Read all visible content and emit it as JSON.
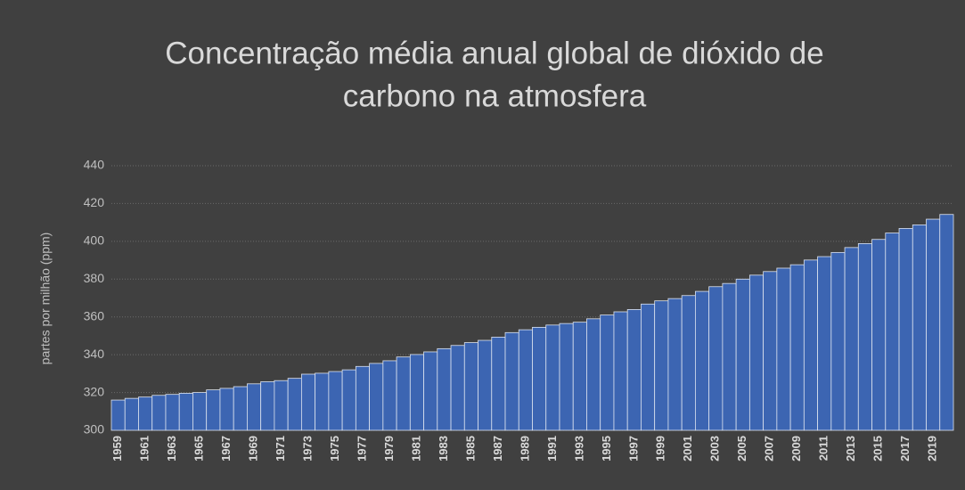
{
  "chart_data": {
    "type": "bar",
    "title": [
      "Concentração média anual global de dióxido de",
      "carbono na atmosfera"
    ],
    "y_label": "partes por milhão (ppm)",
    "categories": [
      "1959",
      null,
      "1961",
      null,
      "1963",
      null,
      "1965",
      null,
      "1967",
      null,
      "1969",
      null,
      "1971",
      null,
      "1973",
      null,
      "1975",
      null,
      "1977",
      null,
      "1979",
      null,
      "1981",
      null,
      "1983",
      null,
      "1985",
      null,
      "1987",
      null,
      "1989",
      null,
      "1991",
      null,
      "1993",
      null,
      "1995",
      null,
      "1997",
      null,
      "1999",
      null,
      "2001",
      null,
      "2003",
      null,
      "2005",
      null,
      "2007",
      null,
      "2009",
      null,
      "2011",
      null,
      "2013",
      null,
      "2015",
      null,
      "2017",
      null,
      "2019",
      null
    ],
    "values": [
      316.0,
      316.9,
      317.6,
      318.5,
      319.0,
      319.6,
      320.0,
      321.4,
      322.2,
      323.1,
      324.6,
      325.7,
      326.3,
      327.5,
      329.7,
      330.2,
      331.1,
      332.0,
      333.8,
      335.4,
      336.8,
      338.8,
      340.1,
      341.5,
      343.2,
      344.9,
      346.4,
      347.6,
      349.3,
      351.7,
      353.2,
      354.5,
      355.7,
      356.5,
      357.2,
      359.0,
      361.0,
      362.7,
      363.9,
      366.8,
      368.5,
      369.7,
      371.3,
      373.5,
      376.0,
      377.7,
      380.0,
      382.1,
      384.0,
      385.8,
      387.6,
      390.1,
      391.9,
      394.1,
      396.7,
      398.8,
      401.0,
      404.4,
      406.8,
      408.7,
      411.7,
      414.2
    ],
    "color": "#3c65b2",
    "ylim": [
      300,
      440
    ],
    "yticks": [
      300,
      320,
      340,
      360,
      380,
      400,
      420,
      440
    ],
    "grid": true
  }
}
